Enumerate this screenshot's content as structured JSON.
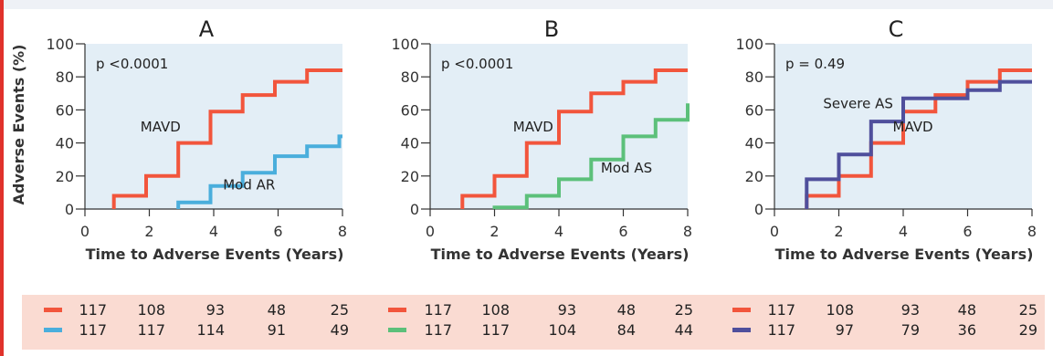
{
  "chart_data": [
    {
      "type": "line",
      "panel": "A",
      "title": "A",
      "xlabel": "Time to Adverse Events (Years)",
      "ylabel": "Adverse Events (%)",
      "xlim": [
        0,
        8
      ],
      "ylim": [
        0,
        100
      ],
      "xticks": [
        0,
        2,
        4,
        6,
        8
      ],
      "yticks": [
        0,
        20,
        40,
        60,
        80,
        100
      ],
      "annotation": "p <0.0001",
      "series": [
        {
          "name": "MAVD",
          "color": "#f2553c",
          "x": [
            0.9,
            0.9,
            1.9,
            1.9,
            2.9,
            2.9,
            3.9,
            3.9,
            4.9,
            4.9,
            5.9,
            5.9,
            6.9,
            6.9,
            8
          ],
          "y": [
            0,
            8,
            8,
            20,
            20,
            40,
            40,
            59,
            59,
            69,
            69,
            77,
            77,
            84,
            84
          ]
        },
        {
          "name": "Mod AR",
          "color": "#4aaedc",
          "x": [
            2.9,
            2.9,
            3.9,
            3.9,
            4.9,
            4.9,
            5.9,
            5.9,
            6.9,
            6.9,
            7.9,
            7.9,
            8
          ],
          "y": [
            0,
            4,
            4,
            14,
            14,
            22,
            22,
            32,
            32,
            38,
            38,
            44,
            44
          ]
        }
      ],
      "annotations": [
        {
          "text": "MAVD",
          "x": 2.35,
          "y": 47
        },
        {
          "text": "Mod AR",
          "x": 5.1,
          "y": 12
        }
      ],
      "risk_table": [
        {
          "color": "#f2553c",
          "values": [
            117,
            108,
            93,
            48,
            25
          ]
        },
        {
          "color": "#4aaedc",
          "values": [
            117,
            117,
            114,
            91,
            49
          ]
        }
      ]
    },
    {
      "type": "line",
      "panel": "B",
      "title": "B",
      "xlabel": "Time to Adverse Events (Years)",
      "ylabel": "",
      "xlim": [
        0,
        8
      ],
      "ylim": [
        0,
        100
      ],
      "xticks": [
        0,
        2,
        4,
        6,
        8
      ],
      "yticks": [
        0,
        20,
        40,
        60,
        80,
        100
      ],
      "annotation": "p <0.0001",
      "series": [
        {
          "name": "MAVD",
          "color": "#f2553c",
          "x": [
            1,
            1,
            2,
            2,
            3,
            3,
            4,
            4,
            5,
            5,
            6,
            6,
            7,
            7,
            8
          ],
          "y": [
            0,
            8,
            8,
            20,
            20,
            40,
            40,
            59,
            59,
            70,
            70,
            77,
            77,
            84,
            84
          ]
        },
        {
          "name": "Mod AS",
          "color": "#5cc07a",
          "x": [
            2,
            2,
            3,
            3,
            4,
            4,
            5,
            5,
            6,
            6,
            7,
            7,
            8,
            8
          ],
          "y": [
            0,
            1,
            1,
            8,
            8,
            18,
            18,
            30,
            30,
            44,
            44,
            54,
            54,
            64
          ]
        }
      ],
      "annotations": [
        {
          "text": "MAVD",
          "x": 3.2,
          "y": 47
        },
        {
          "text": "Mod AS",
          "x": 6.1,
          "y": 22
        }
      ],
      "risk_table": [
        {
          "color": "#f2553c",
          "values": [
            117,
            108,
            93,
            48,
            25
          ]
        },
        {
          "color": "#5cc07a",
          "values": [
            117,
            117,
            104,
            84,
            44
          ]
        }
      ]
    },
    {
      "type": "line",
      "panel": "C",
      "title": "C",
      "xlabel": "Time to Adverse Events (Years)",
      "ylabel": "",
      "xlim": [
        0,
        8
      ],
      "ylim": [
        0,
        100
      ],
      "xticks": [
        0,
        2,
        4,
        6,
        8
      ],
      "yticks": [
        0,
        20,
        40,
        60,
        80,
        100
      ],
      "annotation": "p  = 0.49",
      "series": [
        {
          "name": "MAVD",
          "color": "#f2553c",
          "x": [
            1,
            1,
            2,
            2,
            3,
            3,
            4,
            4,
            5,
            5,
            6,
            6,
            7,
            7,
            8
          ],
          "y": [
            0,
            8,
            8,
            20,
            20,
            40,
            40,
            59,
            59,
            69,
            69,
            77,
            77,
            84,
            84
          ]
        },
        {
          "name": "Severe AS",
          "color": "#4f4f9c",
          "x": [
            1,
            1,
            2,
            2,
            3,
            3,
            4,
            4,
            6,
            6,
            7,
            7,
            8
          ],
          "y": [
            0,
            18,
            18,
            33,
            33,
            53,
            53,
            67,
            67,
            72,
            72,
            77,
            77
          ]
        }
      ],
      "annotations": [
        {
          "text": "Severe AS",
          "x": 2.6,
          "y": 61
        },
        {
          "text": "MAVD",
          "x": 4.3,
          "y": 47
        }
      ],
      "risk_table": [
        {
          "color": "#f2553c",
          "values": [
            117,
            108,
            93,
            48,
            25
          ]
        },
        {
          "color": "#4f4f9c",
          "values": [
            117,
            97,
            79,
            36,
            29
          ]
        }
      ]
    }
  ]
}
